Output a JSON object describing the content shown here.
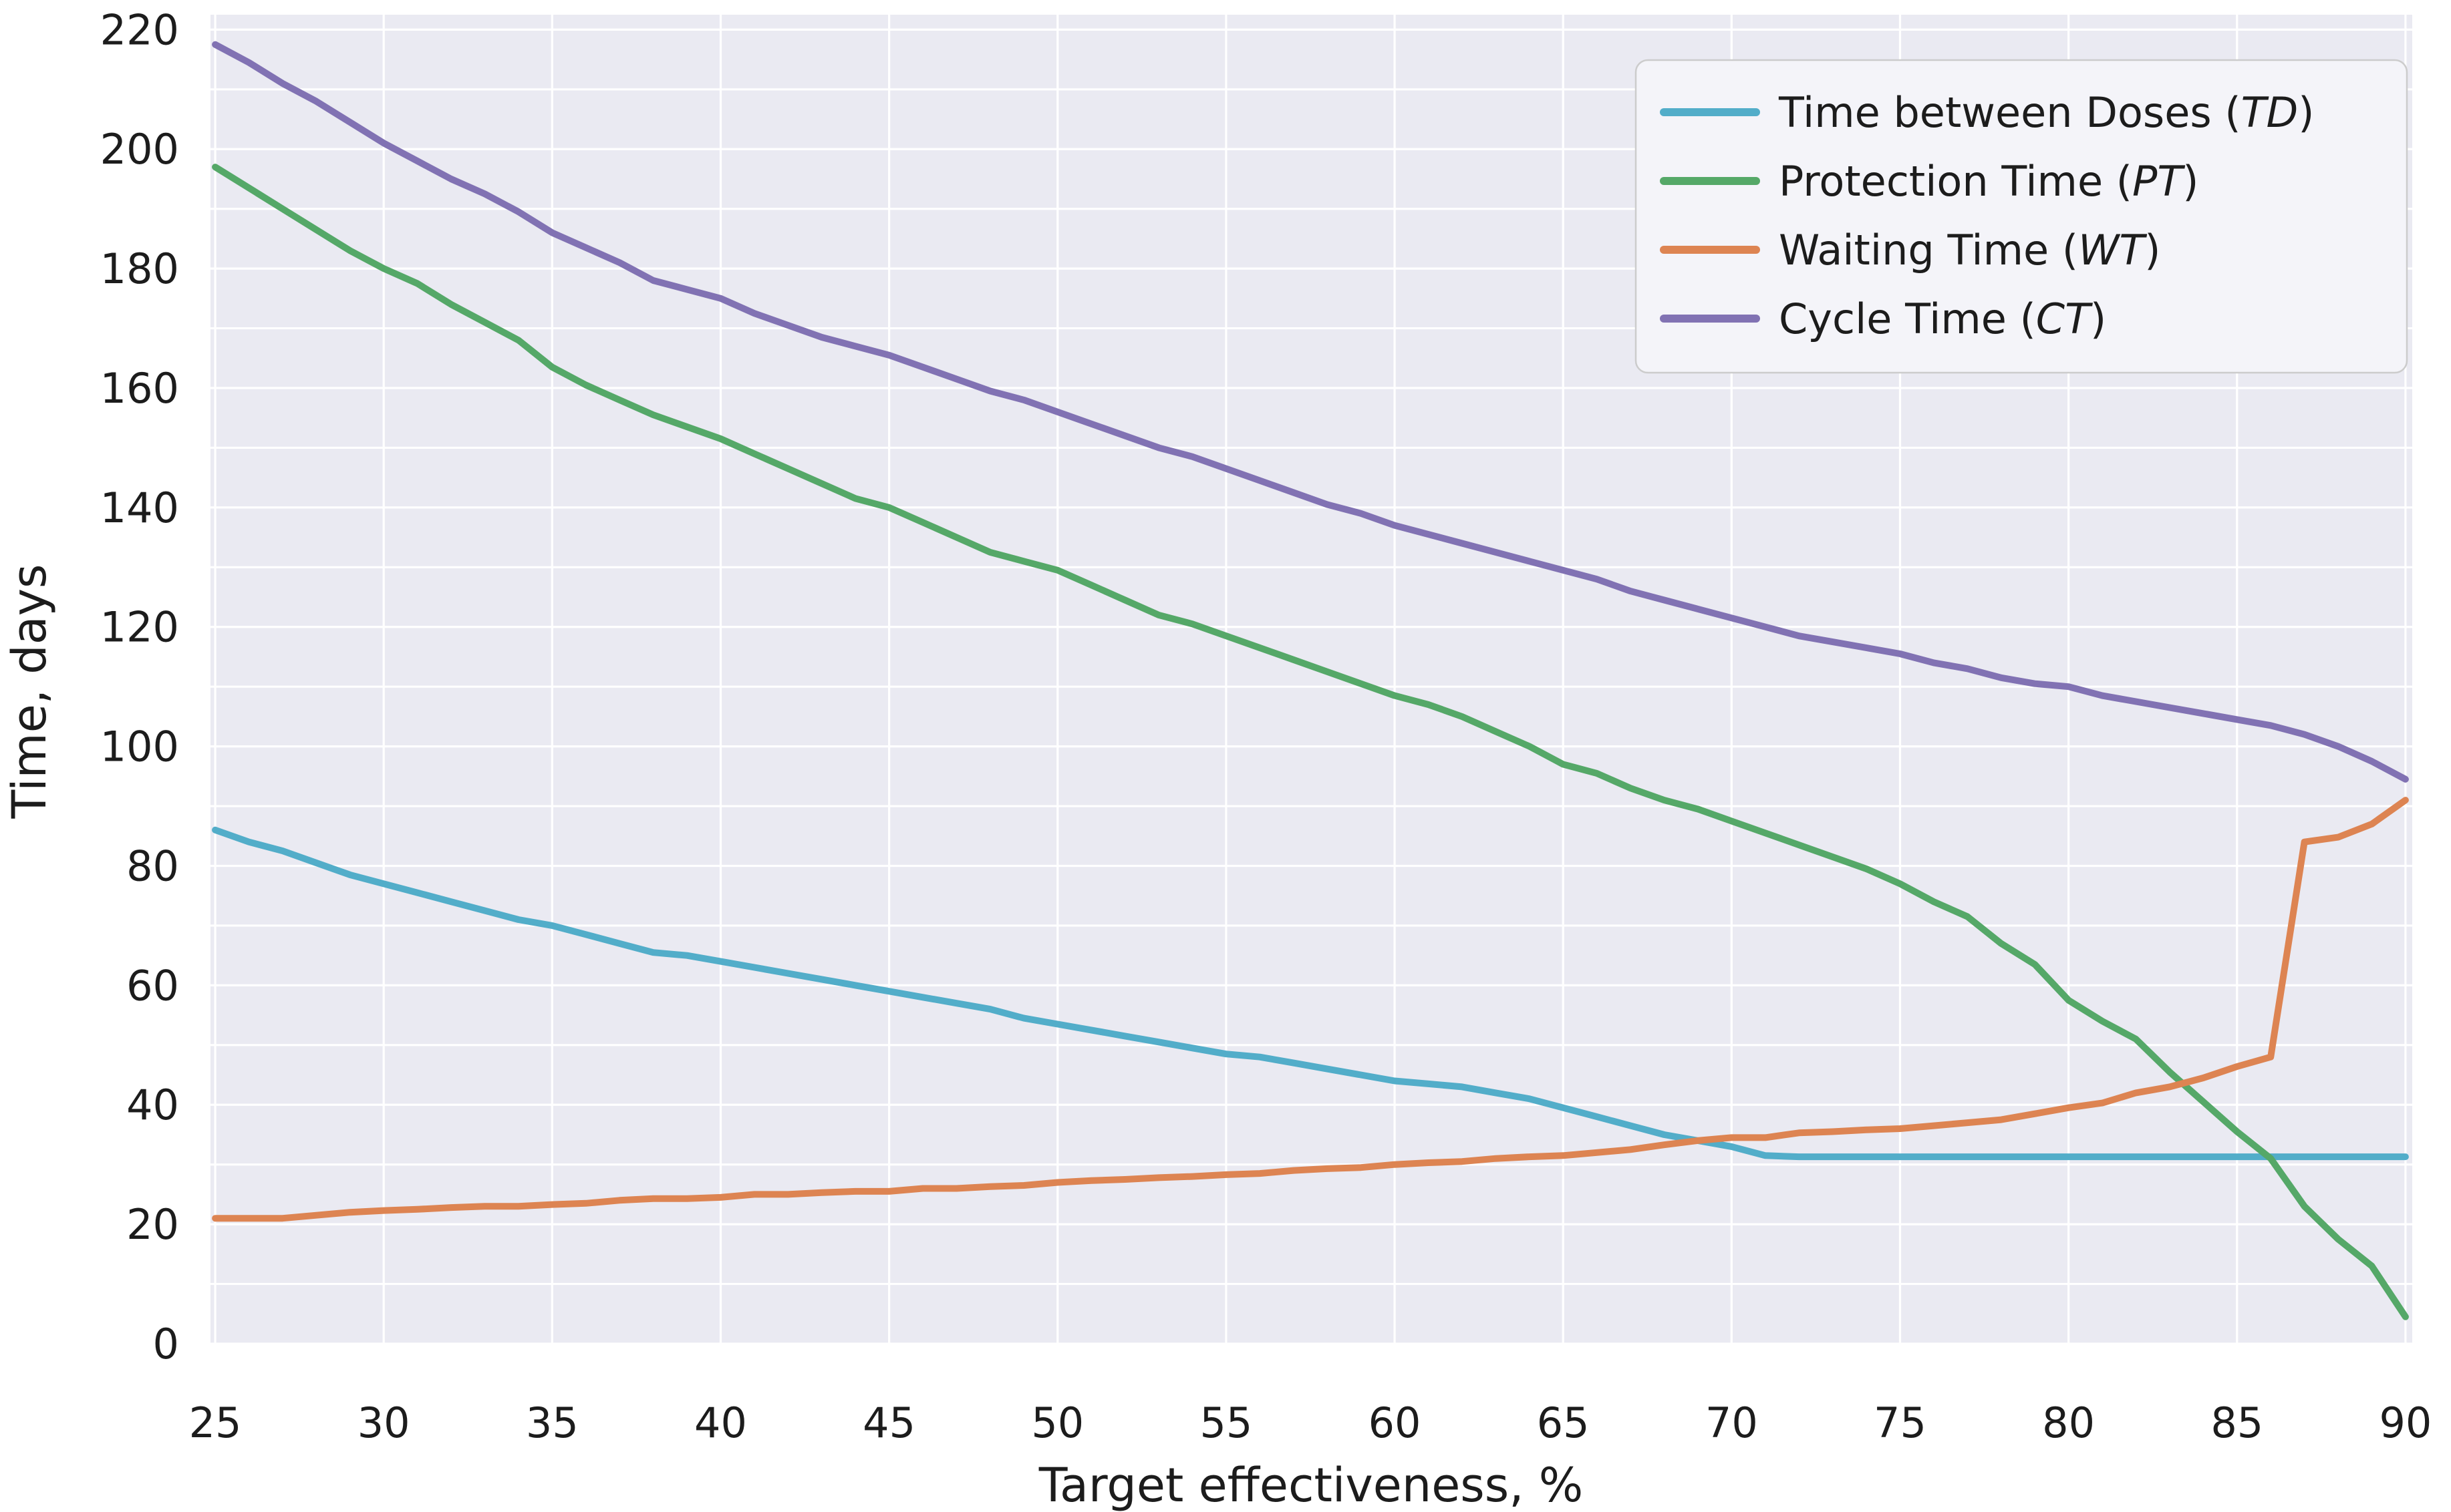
{
  "chart_data": {
    "type": "line",
    "title": "",
    "xlabel": "Target effectiveness, %",
    "ylabel": "Time, days",
    "x": [
      25,
      26,
      27,
      28,
      29,
      30,
      31,
      32,
      33,
      34,
      35,
      36,
      37,
      38,
      39,
      40,
      41,
      42,
      43,
      44,
      45,
      46,
      47,
      48,
      49,
      50,
      51,
      52,
      53,
      54,
      55,
      56,
      57,
      58,
      59,
      60,
      61,
      62,
      63,
      64,
      65,
      66,
      67,
      68,
      69,
      70,
      71,
      72,
      73,
      74,
      75,
      76,
      77,
      78,
      79,
      80,
      81,
      82,
      83,
      84,
      85,
      86,
      87,
      88,
      89,
      90
    ],
    "series": [
      {
        "name": "Time between Doses",
        "abbr": "TD",
        "color": "#52ADC9",
        "values": [
          86,
          84,
          82.5,
          80.5,
          78.5,
          77,
          75.5,
          74,
          72.5,
          71,
          70,
          68.5,
          67,
          65.5,
          65,
          64,
          63,
          62,
          61,
          60,
          59,
          58,
          57,
          56,
          54.5,
          53.5,
          52.5,
          51.5,
          50.5,
          49.5,
          48.5,
          48,
          47,
          46,
          45,
          44,
          43.5,
          43,
          42,
          41,
          39.5,
          38,
          36.5,
          35,
          34,
          33,
          31.5,
          31.3,
          31.3,
          31.3,
          31.3,
          31.3,
          31.3,
          31.3,
          31.3,
          31.3,
          31.3,
          31.3,
          31.3,
          31.3,
          31.3,
          31.3,
          31.3,
          31.3,
          31.3,
          31.3
        ]
      },
      {
        "name": "Protection Time",
        "abbr": "PT",
        "color": "#55A868",
        "values": [
          197,
          193.5,
          190,
          186.5,
          183,
          180,
          177.5,
          174,
          171,
          168,
          163.5,
          160.5,
          158,
          155.5,
          153.5,
          151.5,
          149,
          146.5,
          144,
          141.5,
          140,
          137.5,
          135,
          132.5,
          131,
          129.5,
          127,
          124.5,
          122,
          120.5,
          118.5,
          116.5,
          114.5,
          112.5,
          110.5,
          108.5,
          107,
          105,
          102.5,
          100,
          97,
          95.5,
          93,
          91,
          89.5,
          87.5,
          85.5,
          83.5,
          81.5,
          79.5,
          77,
          74,
          71.5,
          67,
          63.5,
          57.5,
          54,
          51,
          45.5,
          40.5,
          35.5,
          31,
          23,
          17.5,
          13,
          4.5
        ]
      },
      {
        "name": "Waiting Time",
        "abbr": "WT",
        "color": "#DD8452",
        "values": [
          21,
          21,
          21,
          21.5,
          22,
          22.3,
          22.5,
          22.8,
          23,
          23,
          23.3,
          23.5,
          24,
          24.3,
          24.3,
          24.5,
          25,
          25,
          25.3,
          25.5,
          25.5,
          26,
          26,
          26.3,
          26.5,
          27,
          27.3,
          27.5,
          27.8,
          28,
          28.3,
          28.5,
          29,
          29.3,
          29.5,
          30,
          30.3,
          30.5,
          31,
          31.3,
          31.5,
          32,
          32.5,
          33.3,
          34,
          34.5,
          34.5,
          35.3,
          35.5,
          35.8,
          36,
          36.5,
          37,
          37.5,
          38.5,
          39.5,
          40.3,
          42,
          43,
          44.5,
          46.4,
          48,
          84,
          84.8,
          87,
          91
        ]
      },
      {
        "name": "Cycle Time",
        "abbr": "CT",
        "color": "#8172B3",
        "values": [
          217.5,
          214.5,
          211,
          208,
          204.5,
          201,
          198,
          195,
          192.5,
          189.5,
          186,
          183.5,
          181,
          178,
          176.5,
          175,
          172.5,
          170.5,
          168.5,
          167,
          165.5,
          163.5,
          161.5,
          159.5,
          158,
          156,
          154,
          152,
          150,
          148.5,
          146.5,
          144.5,
          142.5,
          140.5,
          139,
          137,
          135.5,
          134,
          132.5,
          131,
          129.5,
          128,
          126,
          124.5,
          123,
          121.5,
          120,
          118.5,
          117.5,
          116.5,
          115.5,
          114,
          113,
          111.5,
          110.5,
          110,
          108.5,
          107.5,
          106.5,
          105.5,
          104.5,
          103.5,
          102,
          100,
          97.5,
          94.5
        ]
      }
    ],
    "x_ticks": [
      25,
      30,
      35,
      40,
      45,
      50,
      55,
      60,
      65,
      70,
      75,
      80,
      85,
      90
    ],
    "y_ticks": [
      0,
      20,
      40,
      60,
      80,
      100,
      120,
      140,
      160,
      180,
      200,
      220
    ],
    "xlim": [
      24.86,
      90.2
    ],
    "ylim": [
      0,
      222.5
    ],
    "grid": {
      "on": true,
      "x_step": 5,
      "y_step": 10,
      "color": "#FFFFFF"
    },
    "legend": {
      "position": "upper right",
      "items": [
        "Time between Doses (TD)",
        "Protection Time (PT)",
        "Waiting Time (WT)",
        "Cycle Time (CT)"
      ]
    },
    "plot_bg": "#EAEAF2",
    "fig_bg": "#FFFFFF",
    "legend_bg": "#F4F4F9",
    "legend_border": "#CCCCCC",
    "text_color": "#1C1C1C"
  }
}
